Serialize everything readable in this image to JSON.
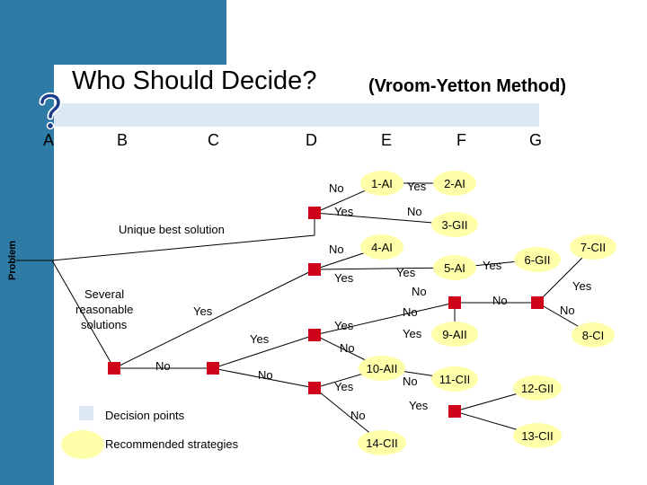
{
  "header": {
    "title": "Who Should Decide?",
    "subtitle": "(Vroom-Yetton Method)"
  },
  "columns": [
    "A",
    "B",
    "C",
    "D",
    "E",
    "F",
    "G"
  ],
  "labels": {
    "problem": "Problem",
    "unique_best": "Unique best solution",
    "several": [
      "Several",
      "reasonable",
      "solutions"
    ],
    "branches": [
      "No",
      "Yes",
      "No",
      "No",
      "Yes",
      "Yes",
      "No",
      "Yes",
      "No",
      "No",
      "Yes",
      "No",
      "Yes",
      "Yes",
      "Yes",
      "No",
      "Yes",
      "No",
      "No",
      "Yes",
      "Yes",
      "No",
      "No",
      "Yes"
    ]
  },
  "strategies": [
    "1-AI",
    "2-AI",
    "3-GII",
    "4-AI",
    "5-AI",
    "6-GII",
    "7-CII",
    "8-CI",
    "9-AII",
    "10-AII",
    "11-CII",
    "12-GII",
    "13-CII",
    "14-CII"
  ],
  "legend": {
    "decision_points": "Decision points",
    "recommended": "Recommended strategies"
  },
  "colors": {
    "band": "#2e7ba6",
    "light_band": "#dce9f5",
    "node": "#d0021b",
    "strategy_fill": "#ffffaa"
  },
  "icons": {
    "question": "question-mark-icon"
  }
}
